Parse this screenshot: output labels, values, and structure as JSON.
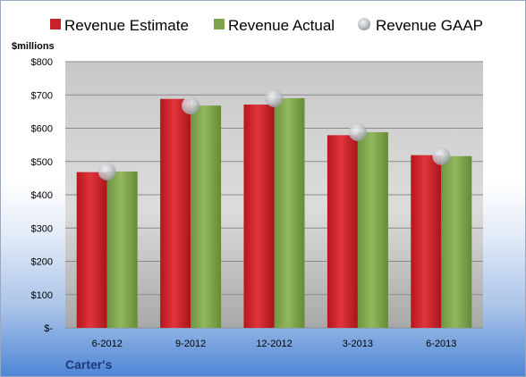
{
  "chart_data": {
    "type": "bar",
    "company": "Carter's",
    "units_label": "$millions",
    "categories": [
      "6-2012",
      "9-2012",
      "12-2012",
      "3-2013",
      "6-2013"
    ],
    "series": [
      {
        "name": "Revenue Estimate",
        "kind": "bar",
        "color": "#c8232a",
        "values": [
          468,
          688,
          671,
          579,
          519
        ]
      },
      {
        "name": "Revenue Actual",
        "kind": "bar",
        "color": "#7fa34b",
        "values": [
          470,
          668,
          690,
          588,
          516
        ]
      },
      {
        "name": "Revenue GAAP",
        "kind": "marker",
        "color": "#b9bcc2",
        "values": [
          470,
          668,
          690,
          588,
          516
        ]
      }
    ],
    "yticks": [
      {
        "value": 0,
        "label": "$-"
      },
      {
        "value": 100,
        "label": "$100"
      },
      {
        "value": 200,
        "label": "$200"
      },
      {
        "value": 300,
        "label": "$300"
      },
      {
        "value": 400,
        "label": "$400"
      },
      {
        "value": 500,
        "label": "$500"
      },
      {
        "value": 600,
        "label": "$600"
      },
      {
        "value": 700,
        "label": "$700"
      },
      {
        "value": 800,
        "label": "$800"
      }
    ],
    "ylim": [
      0,
      800
    ],
    "grid": true,
    "legend_position": "top"
  }
}
